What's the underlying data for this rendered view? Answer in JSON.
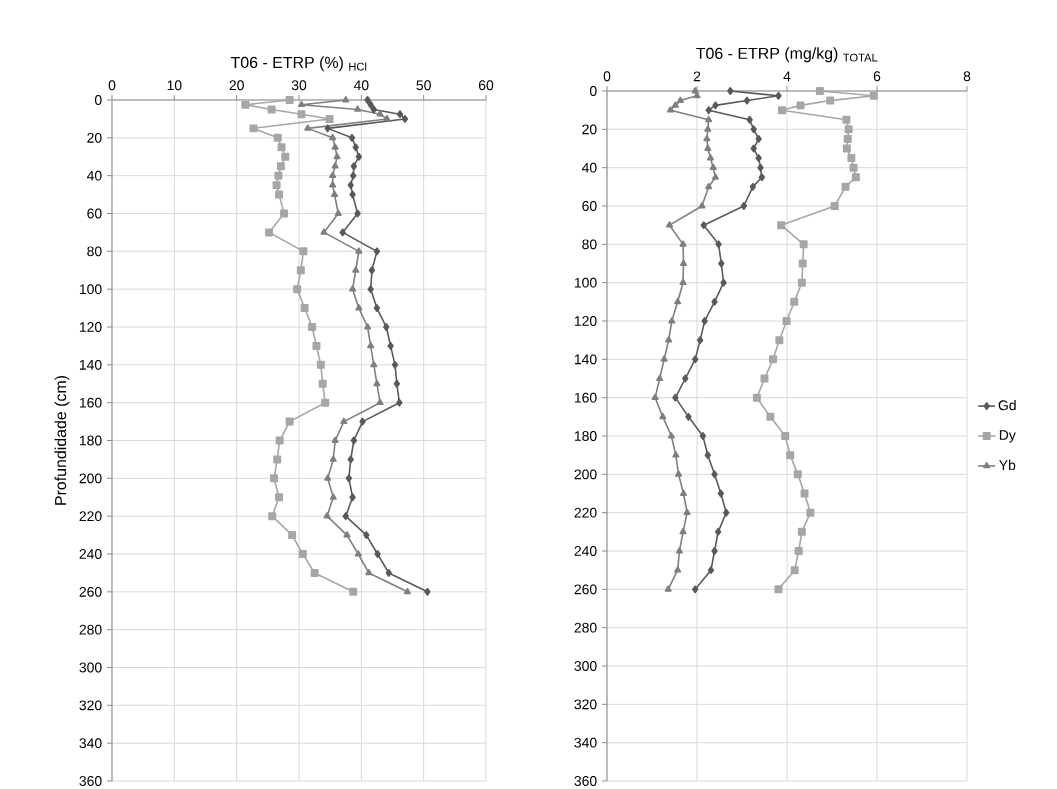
{
  "chart_data": [
    {
      "type": "line",
      "title": "T06 - ETRP (%) $_{HCl}$",
      "ylabel": "Profundidade (cm)",
      "xlim": [
        0,
        60
      ],
      "xticks": [
        0,
        10,
        20,
        30,
        40,
        50,
        60
      ],
      "ylim": [
        360,
        0
      ],
      "yticks": [
        0,
        20,
        40,
        60,
        80,
        100,
        120,
        140,
        160,
        180,
        200,
        220,
        240,
        260,
        280,
        300,
        320,
        340,
        360
      ],
      "grid": true,
      "legend": false,
      "series": [
        {
          "color": "#595959",
          "marker": "diamond",
          "x": [
            41,
            41.5,
            42,
            46.2,
            47,
            34.6,
            38.5,
            39.1,
            39.6,
            38.8,
            38.7,
            38.3,
            38.6,
            39.4,
            37,
            42.5,
            41.7,
            41.5,
            42.5,
            44,
            44.7,
            45.4,
            45.7,
            46.1,
            40.2,
            38.8,
            38.3,
            38,
            38.6,
            37.5,
            40.8,
            42.6,
            44.4,
            50.6
          ],
          "values": [
            0,
            2.5,
            5,
            7.5,
            10,
            15,
            20,
            25,
            30,
            35,
            40,
            45,
            50,
            60,
            70,
            80,
            90,
            100,
            110,
            120,
            130,
            140,
            150,
            160,
            170,
            180,
            190,
            200,
            210,
            220,
            230,
            240,
            250,
            260
          ]
        },
        {
          "color": "#a6a6a6",
          "marker": "square",
          "x": [
            28.5,
            21.4,
            25.6,
            30.4,
            34.9,
            22.7,
            26.6,
            27.2,
            27.8,
            27.1,
            26.7,
            26.4,
            26.8,
            27.6,
            25.2,
            30.7,
            30.3,
            29.7,
            30.9,
            32.1,
            32.8,
            33.5,
            33.8,
            34.2,
            28.5,
            26.9,
            26.5,
            26,
            26.8,
            25.7,
            28.9,
            30.6,
            32.5,
            38.7
          ],
          "values": [
            0,
            2.5,
            5,
            7.5,
            10,
            15,
            20,
            25,
            30,
            35,
            40,
            45,
            50,
            60,
            70,
            80,
            90,
            100,
            110,
            120,
            130,
            140,
            150,
            160,
            170,
            180,
            190,
            200,
            210,
            220,
            230,
            240,
            250,
            260
          ]
        },
        {
          "color": "#7f7f7f",
          "marker": "triangle",
          "x": [
            37.5,
            30.4,
            39.4,
            43,
            44.1,
            31.4,
            35.4,
            35.8,
            36.1,
            35.8,
            35.4,
            35.4,
            35.7,
            36.3,
            34,
            39.6,
            39.1,
            38.6,
            39.6,
            41,
            41.5,
            42,
            42.5,
            43,
            37.2,
            35.8,
            35.5,
            34.6,
            35.5,
            34.5,
            37.7,
            39.5,
            41.2,
            47.4
          ],
          "values": [
            0,
            2.5,
            5,
            7.5,
            10,
            15,
            20,
            25,
            30,
            35,
            40,
            45,
            50,
            60,
            70,
            80,
            90,
            100,
            110,
            120,
            130,
            140,
            150,
            160,
            170,
            180,
            190,
            200,
            210,
            220,
            230,
            240,
            250,
            260
          ]
        }
      ]
    },
    {
      "type": "line",
      "title": "T06 - ETRP (mg/kg) $_{TOTAL}$",
      "xlim": [
        0,
        8
      ],
      "xticks": [
        0,
        2,
        4,
        6,
        8
      ],
      "ylim": [
        360,
        0
      ],
      "yticks": [
        0,
        20,
        40,
        60,
        80,
        100,
        120,
        140,
        160,
        180,
        200,
        220,
        240,
        260,
        280,
        300,
        320,
        340,
        360
      ],
      "grid": true,
      "legend": "right",
      "series": [
        {
          "name": "Gd",
          "color": "#595959",
          "marker": "diamond",
          "x": [
            2.74,
            3.81,
            3.11,
            2.41,
            2.26,
            3.17,
            3.26,
            3.37,
            3.26,
            3.37,
            3.41,
            3.44,
            3.24,
            3.04,
            2.15,
            2.48,
            2.54,
            2.59,
            2.39,
            2.17,
            2.07,
            1.96,
            1.74,
            1.52,
            1.81,
            2.13,
            2.24,
            2.39,
            2.53,
            2.65,
            2.47,
            2.39,
            2.31,
            1.96
          ],
          "values": [
            0,
            2.5,
            5,
            7.5,
            10,
            15,
            20,
            25,
            30,
            35,
            40,
            45,
            50,
            60,
            70,
            80,
            90,
            100,
            110,
            120,
            130,
            140,
            150,
            160,
            170,
            180,
            190,
            200,
            210,
            220,
            230,
            240,
            250,
            260
          ]
        },
        {
          "name": "Dy",
          "color": "#a6a6a6",
          "marker": "square",
          "x": [
            4.73,
            5.93,
            4.96,
            4.3,
            3.89,
            5.32,
            5.37,
            5.35,
            5.33,
            5.43,
            5.48,
            5.53,
            5.3,
            5.06,
            3.87,
            4.37,
            4.35,
            4.33,
            4.16,
            3.99,
            3.83,
            3.69,
            3.5,
            3.33,
            3.63,
            3.96,
            4.07,
            4.24,
            4.39,
            4.52,
            4.33,
            4.26,
            4.17,
            3.81
          ],
          "values": [
            0,
            2.5,
            5,
            7.5,
            10,
            15,
            20,
            25,
            30,
            35,
            40,
            45,
            50,
            60,
            70,
            80,
            90,
            100,
            110,
            120,
            130,
            140,
            150,
            160,
            170,
            180,
            190,
            200,
            210,
            220,
            230,
            240,
            250,
            260
          ]
        },
        {
          "name": "Yb",
          "color": "#7f7f7f",
          "marker": "triangle",
          "x": [
            1.96,
            2.0,
            1.63,
            1.52,
            1.41,
            2.26,
            2.24,
            2.22,
            2.24,
            2.3,
            2.36,
            2.41,
            2.26,
            2.11,
            1.39,
            1.69,
            1.7,
            1.69,
            1.57,
            1.44,
            1.37,
            1.27,
            1.17,
            1.07,
            1.24,
            1.43,
            1.53,
            1.59,
            1.7,
            1.78,
            1.69,
            1.61,
            1.57,
            1.36
          ],
          "values": [
            0,
            2.5,
            5,
            7.5,
            10,
            15,
            20,
            25,
            30,
            35,
            40,
            45,
            50,
            60,
            70,
            80,
            90,
            100,
            110,
            120,
            130,
            140,
            150,
            160,
            170,
            180,
            190,
            200,
            210,
            220,
            230,
            240,
            250,
            260
          ]
        }
      ]
    }
  ]
}
